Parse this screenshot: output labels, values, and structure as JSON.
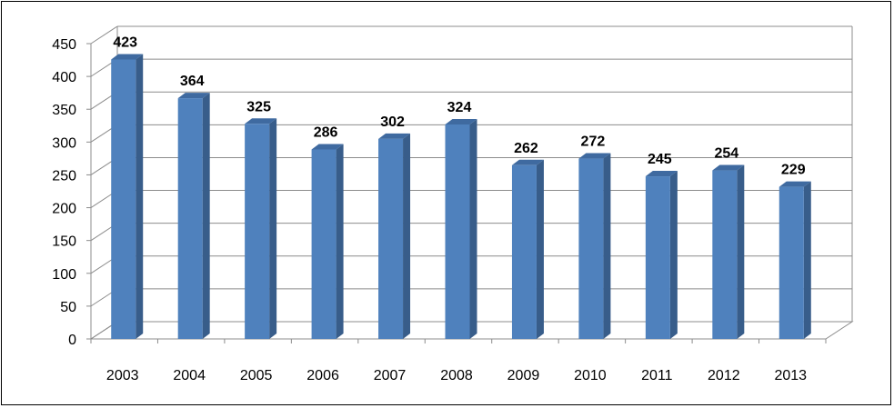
{
  "chart_data": {
    "type": "bar",
    "title": "",
    "xlabel": "",
    "ylabel": "",
    "categories": [
      "2003",
      "2004",
      "2005",
      "2006",
      "2007",
      "2008",
      "2009",
      "2010",
      "2011",
      "2012",
      "2013"
    ],
    "values": [
      423,
      364,
      325,
      286,
      302,
      324,
      262,
      272,
      245,
      254,
      229
    ],
    "ylim": [
      0,
      450
    ],
    "yticks": [
      "0",
      "50",
      "100",
      "150",
      "200",
      "250",
      "300",
      "350",
      "400",
      "450"
    ],
    "data_labels": true,
    "grid": true,
    "legend": "none",
    "colors": {
      "bar_front": "#4f81bd",
      "bar_side": "#385d8a",
      "bar_top": "#3f6aa0",
      "grid": "#8c8c8c"
    }
  }
}
